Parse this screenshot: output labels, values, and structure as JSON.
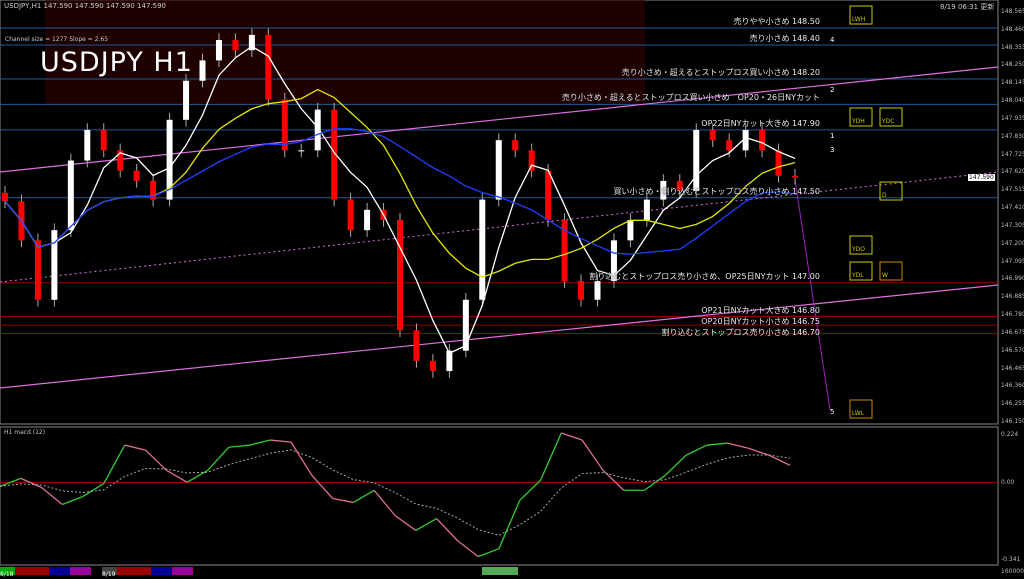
{
  "header": {
    "symbol_line": "USDJPY,H1  147.590 147.590 147.590 147.590",
    "channel_line": "Channel size = 1277 Slope = 2.65",
    "title": "USDJPY H1",
    "updated": "8/19 06:31 更新"
  },
  "annotations": [
    {
      "text": "売りやや小さめ 148.50",
      "price": 148.5
    },
    {
      "text": "売り小さめ 148.40",
      "price": 148.4
    },
    {
      "text": "売り小さめ・超えるとストップロス買い小さめ 148.20",
      "price": 148.2
    },
    {
      "text": "売り小さめ・超えるとストップロス買い小さめ　OP20・26日NYカット",
      "price": 148.05
    },
    {
      "text": "OP22日NYカット大きめ 147.90",
      "price": 147.9
    },
    {
      "text": "買い小さめ・割り込むとストップロス売り小さめ 147.50",
      "price": 147.5
    },
    {
      "text": "割り込むとストップロス売り小さめ、OP25日NYカット 147.00",
      "price": 147.0
    },
    {
      "text": "OP21日NYカット大きめ 146.80",
      "price": 146.8
    },
    {
      "text": "OP20日NYカット小さめ 146.75",
      "price": 146.75
    },
    {
      "text": "割り込むとストップロス売り小さめ 146.70",
      "price": 146.7
    }
  ],
  "markers": {
    "box_labels": [
      "LWH",
      "YDH",
      "YDC",
      "YDO",
      "YDL",
      "W",
      "D",
      "LWL"
    ],
    "wave_labels": [
      "4",
      "2",
      "1",
      "3",
      "5"
    ]
  },
  "colors": {
    "background": "#000000",
    "bull": "#ffffff",
    "bear": "#ff0000",
    "ma_fast": "#ffffff",
    "ma_mid": "#e6e600",
    "ma_slow": "#2040ff",
    "trendline": "#e070e0",
    "level_line": "#1e5a9a",
    "macd_up": "#33cc33",
    "macd_down": "#e07090",
    "zero_line": "#990000"
  },
  "chart_data": [
    {
      "type": "candlestick",
      "title": "USDJPY H1",
      "ylim": [
        146.15,
        148.565
      ],
      "y_ticks": [
        "148.565",
        "148.460",
        "148.355",
        "148.250",
        "148.145",
        "148.040",
        "147.935",
        "147.830",
        "147.725",
        "147.620",
        "147.515",
        "147.410",
        "147.305",
        "147.200",
        "147.095",
        "146.990",
        "146.885",
        "146.780",
        "146.675",
        "146.570",
        "146.465",
        "146.360",
        "146.255",
        "146.150"
      ],
      "current_price": "147.590",
      "close": [
        147.45,
        147.22,
        146.87,
        147.28,
        147.69,
        147.87,
        147.75,
        147.63,
        147.57,
        147.46,
        147.93,
        148.16,
        148.28,
        148.4,
        148.34,
        148.43,
        148.05,
        147.75,
        147.75,
        147.99,
        147.46,
        147.28,
        147.4,
        147.34,
        146.69,
        146.51,
        146.45,
        146.57,
        146.87,
        147.46,
        147.81,
        147.75,
        147.63,
        147.34,
        146.98,
        146.87,
        146.98,
        147.22,
        147.34,
        147.46,
        147.57,
        147.51,
        147.87,
        147.81,
        147.75,
        147.87,
        147.75,
        147.6,
        147.59
      ]
    },
    {
      "type": "line",
      "title": "H1 macd (12)",
      "ylim": [
        -0.341,
        0.224
      ],
      "y_ticks": [
        "0.224",
        "0.00",
        "-0.341"
      ],
      "macd": [
        -0.017,
        0.017,
        -0.022,
        -0.095,
        -0.06,
        -0.004,
        0.159,
        0.138,
        0.052,
        0.0,
        0.052,
        0.15,
        0.159,
        0.181,
        0.172,
        0.03,
        -0.069,
        -0.086,
        -0.034,
        -0.142,
        -0.206,
        -0.155,
        -0.249,
        -0.318,
        -0.284,
        -0.077,
        0.009,
        0.211,
        0.181,
        0.052,
        -0.034,
        -0.034,
        0.03,
        0.116,
        0.159,
        0.168,
        0.146,
        0.116,
        0.073
      ]
    }
  ],
  "timeline": {
    "labels": [
      "8/18",
      "8/19"
    ],
    "right_badge": "160000"
  }
}
